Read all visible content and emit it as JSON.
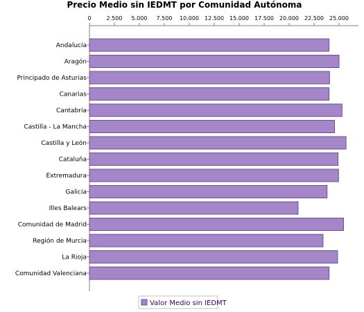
{
  "chart_data": {
    "type": "bar",
    "orientation": "horizontal",
    "title": "Precio Medio sin IEDMT por Comunidad Autónoma",
    "categories": [
      "Andalucía",
      "Aragón",
      "Principado de Asturias",
      "Canarias",
      "Cantabria",
      "Castilla - La Mancha",
      "Castilla y León",
      "Cataluña",
      "Extremadura",
      "Galicia",
      "Illes Balears",
      "Comunidad de Madrid",
      "Región de Murcia",
      "La Rioja",
      "Comunidad Valenciana"
    ],
    "series": [
      {
        "name": "Valor Medio sin IEDMT",
        "values": [
          24000,
          25000,
          24050,
          24000,
          25300,
          24550,
          25700,
          24900,
          24950,
          23800,
          20900,
          25450,
          23400,
          24850,
          24000
        ]
      }
    ],
    "xticks": [
      "0",
      "2.500",
      "5.000",
      "7.500",
      "10.000",
      "12.500",
      "15.000",
      "17.500",
      "20.000",
      "22.500",
      "25.000"
    ],
    "xlim": [
      0,
      27000
    ],
    "grid": false,
    "legend_position": "bottom",
    "colors": {
      "bar_fill": "#a586c9",
      "bar_stroke": "#6b4f96",
      "axis": "#808080",
      "legend_text": "#330066"
    }
  }
}
